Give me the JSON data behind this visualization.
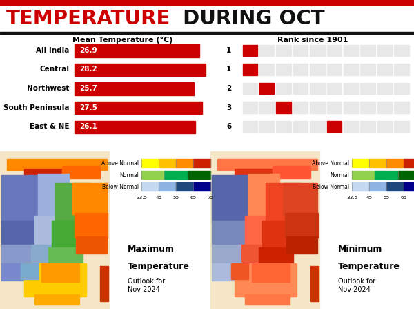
{
  "title_red": "TEMPERATURE",
  "title_black": " DURING OCT",
  "bg_color": "#ffffff",
  "red": "#cc0000",
  "bar_categories": [
    "All India",
    "Central",
    "Northwest",
    "South Peninsula",
    "East & NE"
  ],
  "bar_values": [
    26.9,
    28.2,
    25.7,
    27.5,
    26.1
  ],
  "bar_value_max": 31,
  "ranks": [
    1,
    1,
    2,
    3,
    6
  ],
  "rank_grid_total": 10,
  "mean_temp_label": "Mean Temperature (°C)",
  "rank_label": "Rank since 1901",
  "legend_rows": [
    "Above Normal",
    "Normal",
    "Below Normal"
  ],
  "legend_above_colors": [
    "#ffff00",
    "#ffc000",
    "#ff8c00",
    "#cc2200"
  ],
  "legend_normal_colors": [
    "#92d050",
    "#00b050",
    "#006400"
  ],
  "legend_below_colors": [
    "#c5d9f1",
    "#8db4e2",
    "#1f497d",
    "#00008b"
  ],
  "legend_ticks": [
    "33.5",
    "45",
    "55",
    "65",
    "75"
  ],
  "max_temp_bold1": "Maximum",
  "max_temp_bold2": "Temperature",
  "max_temp_sub": "Outlook for\nNov 2024",
  "min_temp_bold1": "Minimum",
  "min_temp_bold2": "Temperature",
  "min_temp_sub": "Outlook for\nNov 2024",
  "title_line_color": "#000000",
  "gray_bg": "#e8e8e8",
  "map_bg": "#f0ede8"
}
